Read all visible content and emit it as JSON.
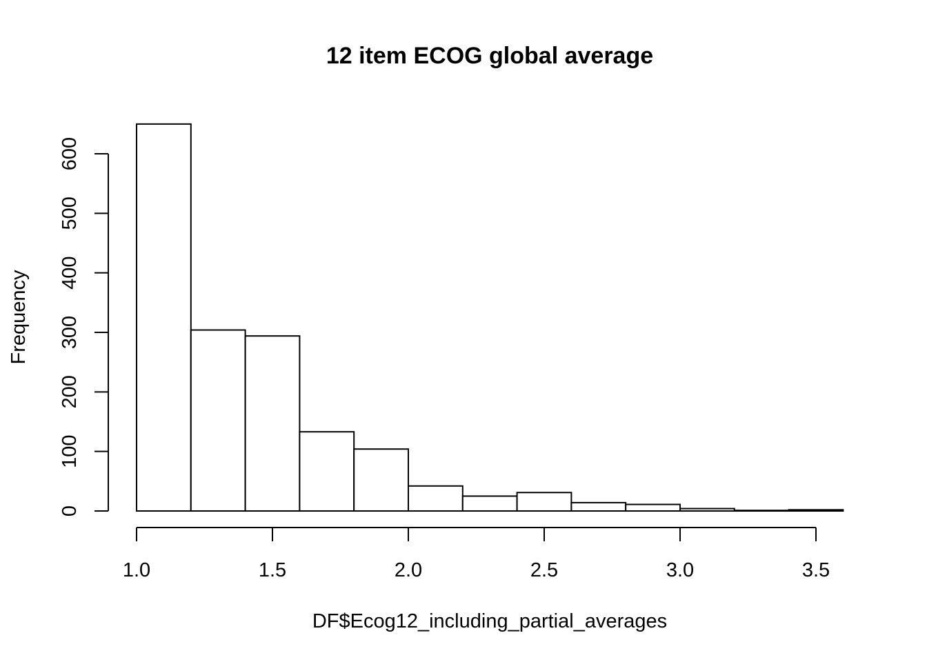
{
  "chart_data": {
    "type": "bar",
    "title": "12 item ECOG global average",
    "xlabel": "DF$Ecog12_including_partial_averages",
    "ylabel": "Frequency",
    "bins": [
      {
        "start": 1.0,
        "end": 1.2,
        "count": 650
      },
      {
        "start": 1.2,
        "end": 1.4,
        "count": 304
      },
      {
        "start": 1.4,
        "end": 1.6,
        "count": 294
      },
      {
        "start": 1.6,
        "end": 1.8,
        "count": 133
      },
      {
        "start": 1.8,
        "end": 2.0,
        "count": 104
      },
      {
        "start": 2.0,
        "end": 2.2,
        "count": 42
      },
      {
        "start": 2.2,
        "end": 2.4,
        "count": 25
      },
      {
        "start": 2.4,
        "end": 2.6,
        "count": 31
      },
      {
        "start": 2.6,
        "end": 2.8,
        "count": 14
      },
      {
        "start": 2.8,
        "end": 3.0,
        "count": 11
      },
      {
        "start": 3.0,
        "end": 3.2,
        "count": 4
      },
      {
        "start": 3.2,
        "end": 3.4,
        "count": 1
      },
      {
        "start": 3.4,
        "end": 3.6,
        "count": 2
      }
    ],
    "x_ticks": [
      {
        "value": 1.0,
        "label": "1.0"
      },
      {
        "value": 1.5,
        "label": "1.5"
      },
      {
        "value": 2.0,
        "label": "2.0"
      },
      {
        "value": 2.5,
        "label": "2.5"
      },
      {
        "value": 3.0,
        "label": "3.0"
      },
      {
        "value": 3.5,
        "label": "3.5"
      }
    ],
    "y_ticks": [
      {
        "value": 0,
        "label": "0"
      },
      {
        "value": 100,
        "label": "100"
      },
      {
        "value": 200,
        "label": "200"
      },
      {
        "value": 300,
        "label": "300"
      },
      {
        "value": 400,
        "label": "400"
      },
      {
        "value": 500,
        "label": "500"
      },
      {
        "value": 600,
        "label": "600"
      }
    ],
    "xlim": [
      1.0,
      3.6
    ],
    "ylim": [
      0,
      650
    ],
    "grid": false,
    "legend": "none"
  }
}
